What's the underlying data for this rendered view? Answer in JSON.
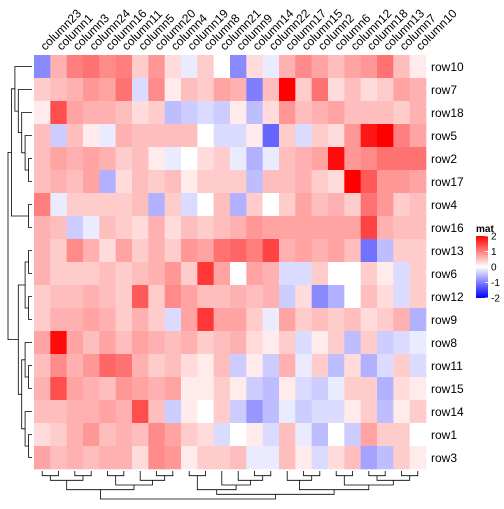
{
  "chart_data": {
    "type": "heatmap",
    "legend": {
      "title": "mat",
      "ticks": [
        2,
        1,
        0,
        -1,
        -2
      ],
      "range": [
        -2,
        2
      ],
      "placement": "right"
    },
    "colors": {
      "low": "#0000ff",
      "mid": "#ffffff",
      "high": "#ff0000"
    },
    "columns": [
      "column23",
      "column1",
      "column3",
      "column24",
      "column16",
      "column11",
      "column5",
      "column20",
      "column4",
      "column19",
      "column8",
      "column21",
      "column9",
      "column14",
      "column22",
      "column17",
      "column15",
      "column2",
      "column6",
      "column12",
      "column18",
      "column13",
      "column7",
      "column10"
    ],
    "rows": [
      "row10",
      "row7",
      "row18",
      "row5",
      "row2",
      "row17",
      "row4",
      "row16",
      "row13",
      "row6",
      "row12",
      "row9",
      "row8",
      "row11",
      "row15",
      "row14",
      "row1",
      "row3"
    ],
    "values": [
      [
        -0.8,
        0.5,
        0.9,
        1.0,
        0.8,
        0.9,
        0.3,
        0.7,
        0.2,
        -0.1,
        0.3,
        0.0,
        -0.8,
        0.2,
        -0.1,
        0.5,
        0.8,
        0.6,
        0.4,
        0.6,
        0.7,
        1.0,
        0.4,
        0.1
      ],
      [
        0.3,
        0.4,
        0.5,
        0.7,
        0.6,
        1.0,
        -0.2,
        0.8,
        0.1,
        0.4,
        0.3,
        0.6,
        0.5,
        -0.9,
        0.4,
        2.0,
        0.3,
        1.0,
        0.2,
        0.4,
        0.2,
        0.3,
        0.6,
        0.5
      ],
      [
        0.1,
        1.3,
        0.6,
        0.5,
        0.5,
        0.4,
        0.2,
        0.3,
        -0.4,
        -0.3,
        -0.2,
        -0.3,
        0.1,
        -0.4,
        0.2,
        0.7,
        0.4,
        0.5,
        0.6,
        0.4,
        0.4,
        0.4,
        0.3,
        0.5
      ],
      [
        0.4,
        -0.3,
        0.4,
        0.1,
        -0.1,
        0.5,
        0.4,
        0.4,
        0.4,
        0.4,
        0.0,
        -0.2,
        -0.2,
        0.1,
        -1.1,
        0.3,
        -0.2,
        0.3,
        0.2,
        0.7,
        1.8,
        2.0,
        0.9,
        0.6
      ],
      [
        0.4,
        0.6,
        0.5,
        0.6,
        0.5,
        0.3,
        0.4,
        0.1,
        -0.1,
        0.0,
        0.2,
        0.3,
        -0.1,
        -0.5,
        -0.1,
        0.4,
        0.5,
        0.6,
        1.9,
        0.7,
        0.8,
        1.0,
        1.0,
        1.0
      ],
      [
        0.4,
        0.5,
        0.4,
        0.6,
        -0.5,
        0.2,
        0.4,
        0.3,
        0.4,
        0.1,
        0.3,
        0.3,
        0.3,
        -0.4,
        0.4,
        0.4,
        0.5,
        0.3,
        0.2,
        2.0,
        1.2,
        0.7,
        0.7,
        0.6
      ],
      [
        0.9,
        -0.1,
        0.3,
        0.3,
        0.3,
        0.3,
        0.4,
        -0.5,
        0.3,
        -0.2,
        0.0,
        0.4,
        -0.5,
        0.3,
        0.0,
        0.3,
        0.6,
        0.4,
        0.5,
        0.3,
        1.0,
        0.7,
        0.3,
        0.4
      ],
      [
        0.5,
        0.4,
        -0.3,
        -0.1,
        0.4,
        0.3,
        0.2,
        0.5,
        0.2,
        0.4,
        0.3,
        0.4,
        0.5,
        0.7,
        0.6,
        0.6,
        0.6,
        0.6,
        0.6,
        0.6,
        1.4,
        0.5,
        0.4,
        0.4
      ],
      [
        0.5,
        0.3,
        0.8,
        0.5,
        0.2,
        0.6,
        0.3,
        0.5,
        0.3,
        0.7,
        0.6,
        1.0,
        1.1,
        0.9,
        1.4,
        0.5,
        0.6,
        0.5,
        0.6,
        0.4,
        -1.0,
        -0.4,
        0.3,
        0.3
      ],
      [
        0.5,
        0.3,
        0.3,
        0.3,
        0.4,
        0.3,
        0.4,
        0.5,
        0.7,
        0.3,
        1.5,
        0.6,
        0.0,
        0.6,
        0.5,
        -0.2,
        -0.2,
        0.3,
        0.0,
        0.0,
        0.3,
        0.1,
        -0.2,
        0.3
      ],
      [
        0.3,
        0.4,
        0.4,
        0.5,
        0.4,
        0.3,
        1.2,
        0.3,
        0.8,
        0.6,
        0.4,
        0.4,
        0.5,
        0.4,
        0.5,
        -0.3,
        0.2,
        -0.8,
        -0.5,
        0.0,
        0.4,
        0.2,
        -0.2,
        0.3
      ],
      [
        0.3,
        0.5,
        0.5,
        0.6,
        0.5,
        0.3,
        0.5,
        0.3,
        -0.2,
        0.6,
        1.5,
        0.6,
        0.6,
        0.3,
        -0.1,
        0.6,
        0.3,
        0.4,
        0.3,
        0.4,
        0.2,
        0.3,
        0.5,
        -0.5
      ],
      [
        0.6,
        1.9,
        0.6,
        0.4,
        0.6,
        0.4,
        0.6,
        0.5,
        0.4,
        0.5,
        0.3,
        0.4,
        0.5,
        0.2,
        0.1,
        0.3,
        -0.2,
        0.1,
        0.3,
        -0.4,
        0.3,
        -0.3,
        -0.2,
        -0.1
      ],
      [
        0.4,
        0.8,
        0.5,
        0.7,
        1.1,
        1.0,
        0.5,
        0.3,
        0.4,
        0.2,
        0.1,
        0.4,
        -0.3,
        0.1,
        -0.3,
        0.5,
        -0.1,
        0.3,
        -0.4,
        0.2,
        -0.5,
        -0.2,
        0.3,
        -0.2
      ],
      [
        0.5,
        1.3,
        0.6,
        0.5,
        0.4,
        0.7,
        0.6,
        0.5,
        0.6,
        0.1,
        0.1,
        0.3,
        0.1,
        -0.3,
        -0.4,
        0.1,
        -0.2,
        -0.3,
        -0.1,
        0.3,
        0.3,
        -0.5,
        0.2,
        0.1
      ],
      [
        0.4,
        0.4,
        0.5,
        0.5,
        0.6,
        0.5,
        1.3,
        0.4,
        -0.3,
        0.1,
        0.0,
        0.3,
        -0.3,
        -0.7,
        -0.4,
        -0.1,
        -0.3,
        -0.2,
        -0.2,
        0.1,
        0.3,
        -0.4,
        0.1,
        0.3
      ],
      [
        0.2,
        0.3,
        0.5,
        0.7,
        0.4,
        0.5,
        0.4,
        0.8,
        0.6,
        0.3,
        0.2,
        -0.2,
        0.0,
        0.1,
        -0.2,
        0.4,
        -0.1,
        -0.4,
        0.0,
        -0.3,
        0.6,
        0.3,
        0.3,
        0.0
      ],
      [
        0.6,
        0.4,
        0.5,
        0.4,
        0.5,
        0.5,
        0.2,
        0.8,
        0.7,
        0.1,
        0.3,
        0.3,
        0.4,
        -0.1,
        -0.1,
        0.4,
        0.1,
        -0.2,
        0.2,
        0.4,
        -0.6,
        -0.4,
        0.3,
        0.1
      ]
    ]
  }
}
